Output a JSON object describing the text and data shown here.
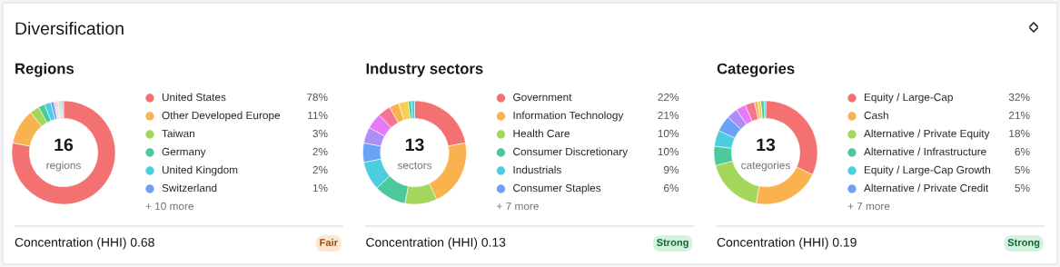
{
  "chart_data": [
    {
      "type": "other",
      "title": "Diversification"
    },
    {
      "type": "donut",
      "title": "Regions",
      "legend": "right",
      "categories": [
        "United States",
        "Other Developed Europe",
        "Taiwan",
        "Germany",
        "United Kingdom",
        "Switzerland",
        null,
        null,
        null,
        null,
        null,
        null,
        null,
        null,
        null,
        null
      ],
      "values": [
        78,
        11,
        3,
        2,
        2,
        1,
        0.3,
        0.3,
        0.3,
        0.3,
        0.3,
        0.3,
        0.3,
        0.3,
        0.3,
        0.3
      ],
      "value_labels": [
        "78%",
        "11%",
        "3%",
        "2%",
        "2%",
        "1%",
        null,
        null,
        null,
        null,
        null,
        null,
        null,
        null,
        null,
        null
      ],
      "colors": [
        "#f47171",
        "#f9b24e",
        "#a3d65a",
        "#4cc99a",
        "#4ccde0",
        "#6aa2f5",
        "#b08cf5",
        "#e879f9",
        "#f57590",
        "#f9b24e",
        "#f5cf4f",
        "#4cc99a",
        "#4ccde0",
        "#6aa2f5",
        "#b08cf5",
        "#e879f9"
      ],
      "annotations": [
        "16",
        "regions",
        "+ 10 more",
        "Concentration (HHI) 0.68",
        "Fair"
      ]
    },
    {
      "type": "donut",
      "title": "Industry sectors",
      "legend": "right",
      "categories": [
        "Government",
        "Information Technology",
        "Health Care",
        "Consumer Discretionary",
        "Industrials",
        "Consumer Staples",
        null,
        null,
        null,
        null,
        null,
        null,
        null
      ],
      "values": [
        22,
        21,
        10,
        10,
        9,
        6,
        5,
        5,
        4,
        3,
        3,
        1,
        1
      ],
      "value_labels": [
        "22%",
        "21%",
        "10%",
        "10%",
        "9%",
        "6%",
        null,
        null,
        null,
        null,
        null,
        null,
        null
      ],
      "colors": [
        "#f47171",
        "#f9b24e",
        "#a3d65a",
        "#4cc99a",
        "#4ccde0",
        "#6aa2f5",
        "#b08cf5",
        "#e879f9",
        "#f57590",
        "#f9b24e",
        "#f5cf4f",
        "#4cc99a",
        "#4ccde0"
      ],
      "annotations": [
        "13",
        "sectors",
        "+ 7 more",
        "Concentration (HHI) 0.13",
        "Strong"
      ]
    },
    {
      "type": "donut",
      "title": "Categories",
      "legend": "right",
      "categories": [
        "Equity / Large-Cap",
        "Cash",
        "Alternative / Private Equity",
        "Alternative / Infrastructure",
        "Equity / Large-Cap Growth",
        "Alternative / Private Credit",
        null,
        null,
        null,
        null,
        null,
        null,
        null
      ],
      "values": [
        32,
        21,
        18,
        6,
        5,
        5,
        3.5,
        3,
        3,
        1,
        1,
        1,
        0.5
      ],
      "value_labels": [
        "32%",
        "21%",
        "18%",
        "6%",
        "5%",
        "5%",
        null,
        null,
        null,
        null,
        null,
        null,
        null
      ],
      "colors": [
        "#f47171",
        "#f9b24e",
        "#a3d65a",
        "#4cc99a",
        "#4ccde0",
        "#6aa2f5",
        "#b08cf5",
        "#e879f9",
        "#f57590",
        "#f9b24e",
        "#f5cf4f",
        "#4cc99a",
        "#4ccde0"
      ],
      "annotations": [
        "13",
        "categories",
        "+ 7 more",
        "Concentration (HHI) 0.19",
        "Strong"
      ]
    }
  ]
}
